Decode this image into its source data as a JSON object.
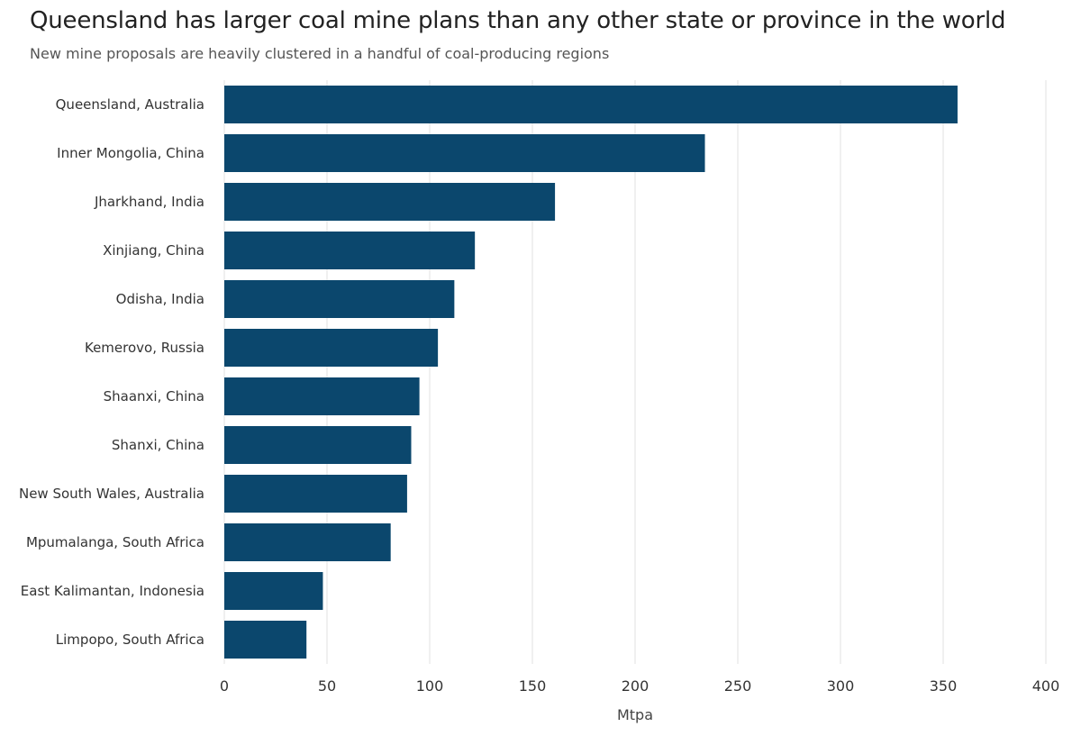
{
  "chart_data": {
    "type": "bar",
    "orientation": "horizontal",
    "title": "Queensland has larger coal mine plans than any other state or province in the world",
    "subtitle": "New mine proposals are heavily clustered in a handful of coal-producing regions",
    "xlabel": "Mtpa",
    "ylabel": "",
    "xlim": [
      0,
      400
    ],
    "xticks": [
      0,
      50,
      100,
      150,
      200,
      250,
      300,
      350,
      400
    ],
    "grid": "vertical",
    "bar_color": "#0b476d",
    "categories": [
      "Queensland, Australia",
      "Inner Mongolia, China",
      "Jharkhand, India",
      "Xinjiang, China",
      "Odisha, India",
      "Kemerovo, Russia",
      "Shaanxi, China",
      "Shanxi, China",
      "New South Wales, Australia",
      "Mpumalanga, South Africa",
      "East Kalimantan, Indonesia",
      "Limpopo, South Africa"
    ],
    "values": [
      357,
      234,
      161,
      122,
      112,
      104,
      95,
      91,
      89,
      81,
      48,
      40
    ]
  }
}
